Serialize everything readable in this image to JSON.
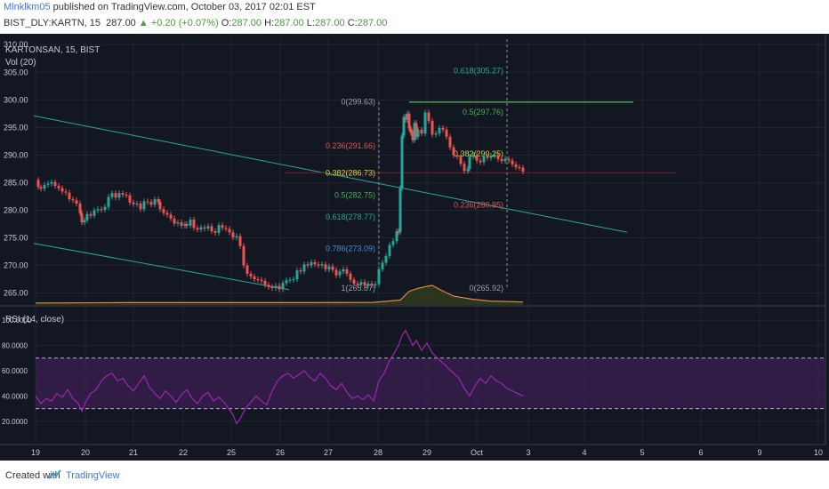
{
  "header": {
    "author": "Mlnklkm05",
    "published": "published on TradingView.com, October 03, 2017 02:01 EST",
    "symbol": "BIST_DLY:KARTN, 15",
    "last": "287.00",
    "change": "+0.20 (+0.07%)",
    "o_label": "O:",
    "o_value": "287.00",
    "h_label": "H:",
    "h_value": "287.00",
    "l_label": "L:",
    "l_value": "287.00",
    "c_label": "C:",
    "c_value": "287.00"
  },
  "chart": {
    "title": "KARTONSAN, 15, BIST",
    "volume_label": "Vol (20)",
    "rsi_label": "RSI (14, close)"
  },
  "footer": {
    "created_with": "Created with",
    "brand": "TradingView"
  },
  "colors": {
    "background": "#131722",
    "grid": "#222634",
    "up": "#26a69a",
    "down": "#ef5350",
    "trend": "#2aa7a0",
    "rsi": "#9c27b0",
    "volume_ma": "#e08a3c"
  },
  "chart_data": {
    "type": "candlestick",
    "price_axis": {
      "ylim": [
        263,
        311
      ],
      "ticks": [
        "310.00",
        "305.00",
        "300.00",
        "295.00",
        "290.00",
        "285.00",
        "280.00",
        "275.00",
        "270.00",
        "265.00"
      ]
    },
    "x_axis": {
      "ticks": [
        "19",
        "20",
        "21",
        "22",
        "25",
        "26",
        "27",
        "28",
        "29",
        "Oct",
        "3",
        "4",
        "5",
        "6",
        "9",
        "10"
      ]
    },
    "price_series": [
      [
        0,
        285.5
      ],
      [
        3,
        284.2
      ],
      [
        6,
        283.9
      ],
      [
        10,
        284.6
      ],
      [
        14,
        284.8
      ],
      [
        18,
        285.1
      ],
      [
        22,
        284.4
      ],
      [
        26,
        284.0
      ],
      [
        30,
        283.4
      ],
      [
        34,
        283.2
      ],
      [
        38,
        282.0
      ],
      [
        42,
        281.8
      ],
      [
        46,
        281.2
      ],
      [
        50,
        279.5
      ],
      [
        52,
        277.8
      ],
      [
        55,
        278.2
      ],
      [
        58,
        279.3
      ],
      [
        62,
        279.0
      ],
      [
        66,
        280.0
      ],
      [
        70,
        280.2
      ],
      [
        74,
        280.1
      ],
      [
        78,
        280.6
      ],
      [
        82,
        282.4
      ],
      [
        86,
        283.1
      ],
      [
        90,
        282.3
      ],
      [
        94,
        283.1
      ],
      [
        98,
        282.8
      ],
      [
        102,
        282.7
      ],
      [
        106,
        281.4
      ],
      [
        110,
        281.1
      ],
      [
        114,
        281.2
      ],
      [
        118,
        280.2
      ],
      [
        122,
        281.6
      ],
      [
        126,
        281.5
      ],
      [
        130,
        281.0
      ],
      [
        134,
        282.0
      ],
      [
        138,
        281.5
      ],
      [
        140,
        280.2
      ],
      [
        144,
        279.5
      ],
      [
        148,
        279.2
      ],
      [
        152,
        278.5
      ],
      [
        156,
        277.6
      ],
      [
        160,
        277.8
      ],
      [
        164,
        277.2
      ],
      [
        168,
        277.5
      ],
      [
        170,
        277.2
      ],
      [
        174,
        278.3
      ],
      [
        178,
        276.8
      ],
      [
        182,
        276.5
      ],
      [
        186,
        276.9
      ],
      [
        190,
        276.7
      ],
      [
        194,
        277.1
      ],
      [
        198,
        276.2
      ],
      [
        202,
        275.9
      ],
      [
        206,
        277.3
      ],
      [
        210,
        276.8
      ],
      [
        214,
        276.6
      ],
      [
        218,
        276.0
      ],
      [
        222,
        275.1
      ],
      [
        226,
        275.3
      ],
      [
        230,
        273.5
      ],
      [
        234,
        270.0
      ],
      [
        238,
        268.5
      ],
      [
        242,
        268.0
      ],
      [
        246,
        267.5
      ],
      [
        250,
        267.4
      ],
      [
        254,
        267.2
      ],
      [
        258,
        266.5
      ],
      [
        262,
        266.1
      ],
      [
        266,
        265.9
      ],
      [
        270,
        266.3
      ],
      [
        274,
        265.7
      ],
      [
        278,
        266.8
      ],
      [
        282,
        267.3
      ],
      [
        286,
        267.4
      ],
      [
        290,
        267.5
      ],
      [
        294,
        269.1
      ],
      [
        298,
        268.9
      ],
      [
        302,
        270.2
      ],
      [
        306,
        270.0
      ],
      [
        310,
        270.6
      ],
      [
        314,
        270.2
      ],
      [
        318,
        270.0
      ],
      [
        322,
        270.2
      ],
      [
        326,
        269.3
      ],
      [
        330,
        269.8
      ],
      [
        334,
        269.2
      ],
      [
        338,
        268.2
      ],
      [
        342,
        268.9
      ],
      [
        346,
        269.3
      ],
      [
        350,
        268.5
      ],
      [
        354,
        267.4
      ],
      [
        358,
        266.7
      ],
      [
        362,
        266.5
      ],
      [
        366,
        267.0
      ],
      [
        370,
        266.4
      ],
      [
        374,
        266.7
      ],
      [
        378,
        266.4
      ],
      [
        382,
        266.6
      ],
      [
        386,
        269.3
      ],
      [
        390,
        270.5
      ],
      [
        394,
        271.7
      ],
      [
        398,
        273.7
      ],
      [
        402,
        274.4
      ],
      [
        406,
        276.2
      ],
      [
        408,
        276.0
      ],
      [
        410,
        284.0
      ],
      [
        412,
        293.5
      ],
      [
        414,
        296.9
      ],
      [
        416,
        296.4
      ],
      [
        418,
        297.5
      ],
      [
        420,
        294.8
      ],
      [
        422,
        294.0
      ],
      [
        424,
        292.7
      ],
      [
        426,
        295.8
      ],
      [
        428,
        293.3
      ],
      [
        430,
        294.6
      ],
      [
        434,
        293.9
      ],
      [
        438,
        297.7
      ],
      [
        442,
        296.2
      ],
      [
        446,
        293.7
      ],
      [
        450,
        293.9
      ],
      [
        454,
        294.9
      ],
      [
        458,
        294.6
      ],
      [
        462,
        293.3
      ],
      [
        466,
        291.4
      ],
      [
        470,
        290.0
      ],
      [
        474,
        289.7
      ],
      [
        478,
        288.4
      ],
      [
        482,
        287.1
      ],
      [
        486,
        287.5
      ],
      [
        488,
        289.7
      ],
      [
        492,
        290.0
      ],
      [
        496,
        289.0
      ],
      [
        500,
        288.7
      ],
      [
        504,
        289.8
      ],
      [
        508,
        289.5
      ],
      [
        512,
        289.9
      ],
      [
        516,
        290.0
      ],
      [
        520,
        289.3
      ],
      [
        524,
        288.9
      ],
      [
        528,
        289.3
      ],
      [
        532,
        289.0
      ],
      [
        536,
        288.3
      ],
      [
        540,
        287.8
      ],
      [
        544,
        287.7
      ],
      [
        548,
        287.0
      ]
    ],
    "volume_ma": [
      [
        0,
        0.1
      ],
      [
        100,
        0.12
      ],
      [
        200,
        0.12
      ],
      [
        300,
        0.12
      ],
      [
        380,
        0.13
      ],
      [
        410,
        0.25
      ],
      [
        420,
        0.7
      ],
      [
        430,
        0.85
      ],
      [
        440,
        0.95
      ],
      [
        446,
        1.0
      ],
      [
        456,
        0.75
      ],
      [
        470,
        0.45
      ],
      [
        490,
        0.3
      ],
      [
        510,
        0.2
      ],
      [
        548,
        0.15
      ]
    ],
    "rsi": {
      "ylim": [
        10,
        110
      ],
      "ticks": [
        "100.0000",
        "80.0000",
        "60.0000",
        "40.0000",
        "20.0000"
      ],
      "band": [
        30,
        70
      ],
      "series": [
        [
          0,
          40
        ],
        [
          6,
          34
        ],
        [
          12,
          38
        ],
        [
          18,
          36
        ],
        [
          24,
          42
        ],
        [
          30,
          39
        ],
        [
          36,
          45
        ],
        [
          42,
          38
        ],
        [
          48,
          34
        ],
        [
          52,
          28
        ],
        [
          56,
          35
        ],
        [
          62,
          42
        ],
        [
          68,
          45
        ],
        [
          74,
          52
        ],
        [
          80,
          56
        ],
        [
          86,
          58
        ],
        [
          92,
          52
        ],
        [
          98,
          54
        ],
        [
          104,
          48
        ],
        [
          110,
          44
        ],
        [
          116,
          50
        ],
        [
          122,
          56
        ],
        [
          128,
          47
        ],
        [
          134,
          42
        ],
        [
          140,
          38
        ],
        [
          146,
          44
        ],
        [
          152,
          40
        ],
        [
          158,
          35
        ],
        [
          164,
          41
        ],
        [
          170,
          45
        ],
        [
          176,
          38
        ],
        [
          182,
          34
        ],
        [
          188,
          40
        ],
        [
          194,
          43
        ],
        [
          200,
          36
        ],
        [
          206,
          39
        ],
        [
          212,
          35
        ],
        [
          218,
          29
        ],
        [
          222,
          25
        ],
        [
          226,
          18
        ],
        [
          230,
          22
        ],
        [
          236,
          30
        ],
        [
          242,
          35
        ],
        [
          248,
          40
        ],
        [
          254,
          36
        ],
        [
          260,
          33
        ],
        [
          266,
          44
        ],
        [
          272,
          52
        ],
        [
          278,
          56
        ],
        [
          284,
          58
        ],
        [
          290,
          54
        ],
        [
          296,
          57
        ],
        [
          302,
          60
        ],
        [
          308,
          55
        ],
        [
          314,
          52
        ],
        [
          320,
          58
        ],
        [
          326,
          54
        ],
        [
          332,
          48
        ],
        [
          338,
          45
        ],
        [
          344,
          50
        ],
        [
          350,
          43
        ],
        [
          356,
          38
        ],
        [
          362,
          40
        ],
        [
          368,
          37
        ],
        [
          374,
          41
        ],
        [
          380,
          36
        ],
        [
          386,
          52
        ],
        [
          392,
          58
        ],
        [
          398,
          68
        ],
        [
          404,
          75
        ],
        [
          408,
          80
        ],
        [
          412,
          88
        ],
        [
          416,
          92
        ],
        [
          420,
          86
        ],
        [
          424,
          80
        ],
        [
          428,
          84
        ],
        [
          434,
          76
        ],
        [
          440,
          82
        ],
        [
          446,
          74
        ],
        [
          452,
          70
        ],
        [
          458,
          66
        ],
        [
          464,
          62
        ],
        [
          470,
          58
        ],
        [
          476,
          54
        ],
        [
          482,
          46
        ],
        [
          488,
          40
        ],
        [
          494,
          48
        ],
        [
          500,
          54
        ],
        [
          506,
          50
        ],
        [
          512,
          56
        ],
        [
          518,
          52
        ],
        [
          524,
          50
        ],
        [
          530,
          46
        ],
        [
          536,
          44
        ],
        [
          542,
          42
        ],
        [
          548,
          40
        ]
      ]
    },
    "trend_lines": [
      {
        "name": "upper channel",
        "from": [
          -2,
          297.1
        ],
        "to": [
          665,
          276.0
        ]
      },
      {
        "name": "lower channel",
        "from": [
          -2,
          274.0
        ],
        "to": [
          285,
          265.6
        ]
      }
    ],
    "fib_retracement_1": {
      "levels": [
        {
          "label": "0(299.63)",
          "price": 299.63
        },
        {
          "label": "0.236(291.66)",
          "price": 291.66
        },
        {
          "label": "0.382(286.73)",
          "price": 286.73
        },
        {
          "label": "0.5(282.75)",
          "price": 282.75
        },
        {
          "label": "0.618(278.77)",
          "price": 278.77
        },
        {
          "label": "0.786(273.09)",
          "price": 273.09
        },
        {
          "label": "1(265.87)",
          "price": 265.87
        }
      ]
    },
    "fib_retracement_2": {
      "levels": [
        {
          "label": "0.618(305.27)",
          "price": 305.27
        },
        {
          "label": "0.5(297.76)",
          "price": 297.76
        },
        {
          "label": "0.382(290.25)",
          "price": 290.25
        },
        {
          "label": "0.236(280.95)",
          "price": 280.95
        },
        {
          "label": "0(265.92)",
          "price": 265.92
        }
      ]
    },
    "horizontal_lines": [
      {
        "name": "resistance",
        "price": 299.6
      },
      {
        "name": "last price",
        "price": 286.8
      }
    ]
  }
}
